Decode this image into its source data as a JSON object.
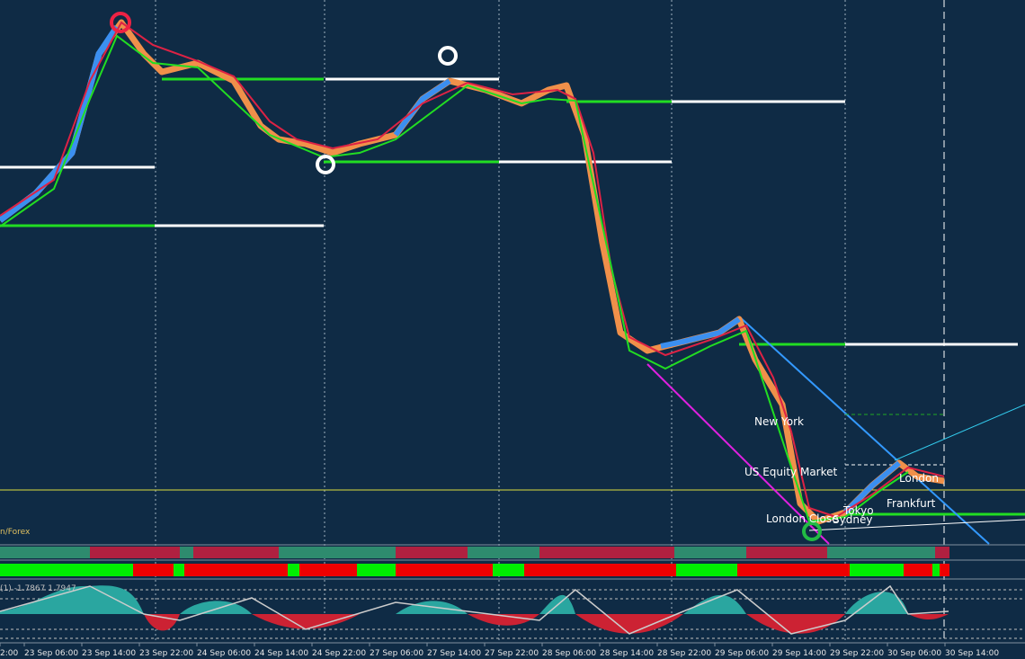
{
  "x_axis": {
    "labels": [
      "2:00",
      "23 Sep 06:00",
      "23 Sep 14:00",
      "23 Sep 22:00",
      "24 Sep 06:00",
      "24 Sep 14:00",
      "24 Sep 22:00",
      "27 Sep 06:00",
      "27 Sep 14:00",
      "27 Sep 22:00",
      "28 Sep 06:00",
      "28 Sep 14:00",
      "28 Sep 22:00",
      "29 Sep 06:00",
      "29 Sep 14:00",
      "29 Sep 22:00",
      "30 Sep 06:00",
      "30 Sep 14:00"
    ]
  },
  "sessions": {
    "new_york": "New York",
    "us_equity": "US Equity Market",
    "london": "London",
    "frankfurt": "Frankfurt",
    "tokyo": "Tokyo",
    "sydney": "Sydney",
    "london_close": "London Close"
  },
  "indicator_label": "(1) -1.7867 1.7947",
  "corner_label": "n/Forex"
}
